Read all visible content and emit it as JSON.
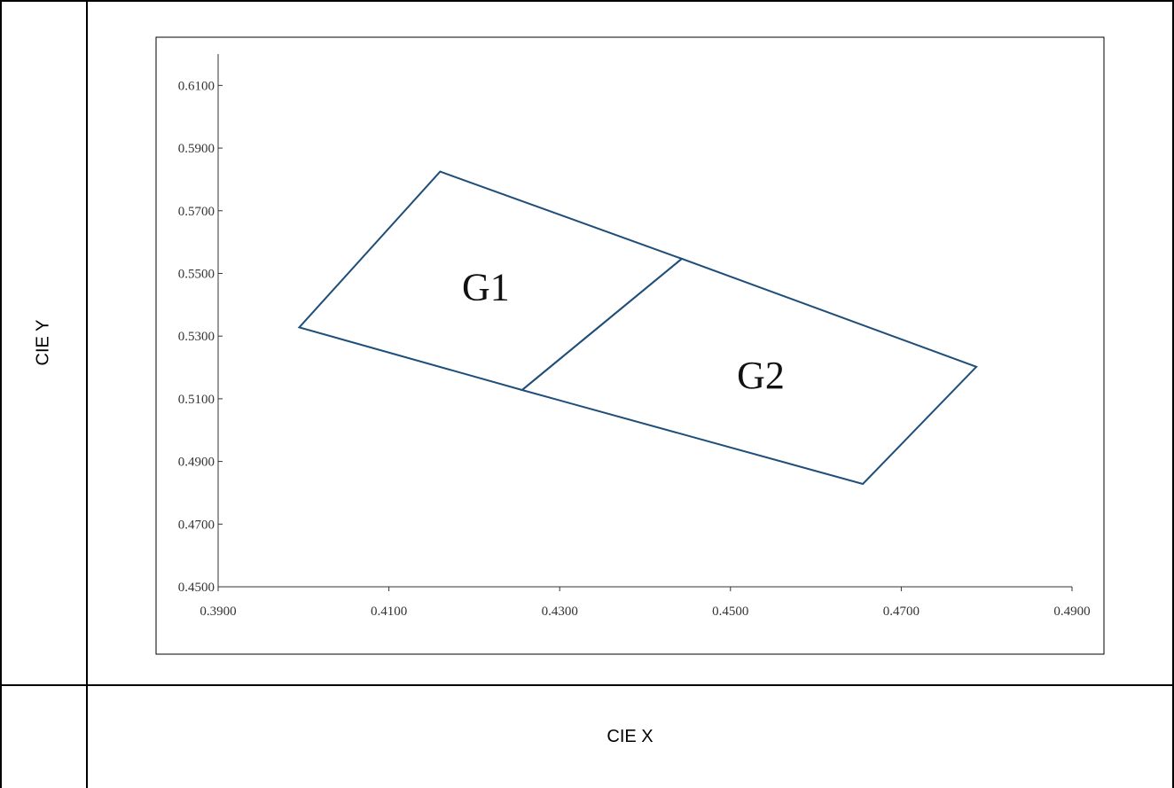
{
  "labels": {
    "y_axis": "CIE Y",
    "x_axis": "CIE X"
  },
  "colors": {
    "line": "#1f4e79",
    "axis": "#333333"
  },
  "chart_data": {
    "type": "line",
    "xlim": [
      0.39,
      0.49
    ],
    "ylim": [
      0.45,
      0.62
    ],
    "x_ticks": [
      "0.3900",
      "0.4100",
      "0.4300",
      "0.4500",
      "0.4700",
      "0.4900"
    ],
    "y_ticks": [
      "0.4500",
      "0.4700",
      "0.4900",
      "0.5100",
      "0.5300",
      "0.5500",
      "0.5700",
      "0.5900",
      "0.6100"
    ],
    "grid": false,
    "polygons": [
      {
        "name": "G1",
        "points": [
          [
            0.3995,
            0.5328
          ],
          [
            0.416,
            0.5825
          ],
          [
            0.4443,
            0.5547
          ],
          [
            0.4256,
            0.5128
          ]
        ]
      },
      {
        "name": "G2",
        "points": [
          [
            0.4256,
            0.5128
          ],
          [
            0.4443,
            0.5547
          ],
          [
            0.4788,
            0.5202
          ],
          [
            0.4655,
            0.4828
          ]
        ]
      }
    ]
  }
}
